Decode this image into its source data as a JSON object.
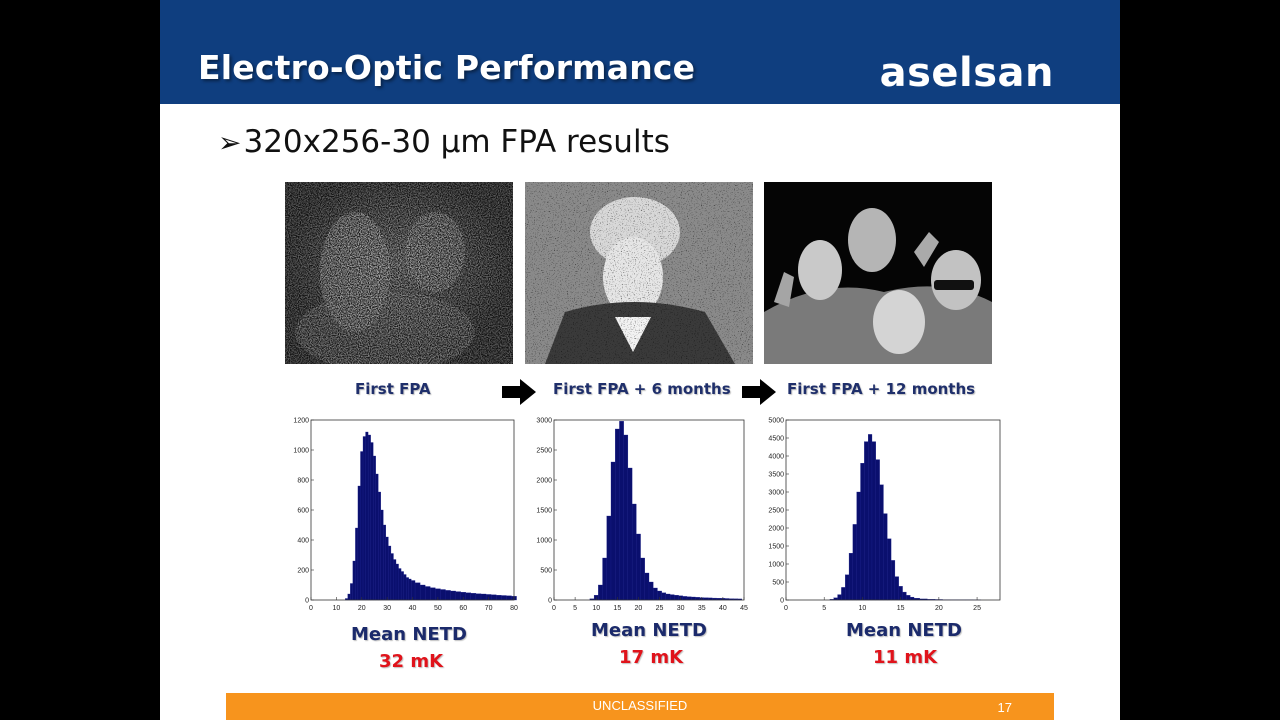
{
  "header": {
    "title": "Electro-Optic Performance",
    "logo_text": "aselsan"
  },
  "bullet": {
    "marker": "➢",
    "text": "320x256-30 µm FPA results"
  },
  "captions": [
    "First FPA",
    "First FPA + 6 months",
    "First FPA + 12 months"
  ],
  "netd": [
    {
      "label": "Mean NETD",
      "value": "32 mK"
    },
    {
      "label": "Mean NETD",
      "value": "17 mK"
    },
    {
      "label": "Mean NETD",
      "value": "11 mK"
    }
  ],
  "footer": {
    "classification": "UNCLASSIFIED",
    "page": "17"
  },
  "colors": {
    "header_bg": "#0f3e7f",
    "footer_bg": "#f7941d",
    "bar_fill": "#0a0f6e",
    "netd_value": "#e0131b"
  },
  "chart_data": [
    {
      "type": "bar",
      "xlim": [
        0,
        80
      ],
      "ylim": [
        0,
        1200
      ],
      "xticks": [
        0,
        10,
        20,
        30,
        40,
        50,
        60,
        70,
        80
      ],
      "yticks": [
        0,
        200,
        400,
        600,
        800,
        1000,
        1200
      ],
      "x": [
        14,
        15,
        16,
        17,
        18,
        19,
        20,
        21,
        22,
        23,
        24,
        25,
        26,
        27,
        28,
        29,
        30,
        31,
        32,
        33,
        34,
        35,
        36,
        37,
        38,
        39,
        40,
        42,
        44,
        46,
        48,
        50,
        52,
        54,
        56,
        58,
        60,
        62,
        64,
        66,
        68,
        70,
        72,
        74,
        76,
        78,
        80
      ],
      "values": [
        10,
        40,
        110,
        260,
        480,
        760,
        990,
        1090,
        1120,
        1100,
        1050,
        960,
        840,
        720,
        600,
        500,
        420,
        360,
        310,
        270,
        240,
        210,
        190,
        170,
        150,
        140,
        130,
        115,
        100,
        90,
        82,
        75,
        70,
        64,
        60,
        56,
        52,
        48,
        45,
        42,
        40,
        37,
        35,
        32,
        30,
        28,
        25
      ]
    },
    {
      "type": "bar",
      "xlim": [
        0,
        45
      ],
      "ylim": [
        0,
        3000
      ],
      "xticks": [
        0,
        5,
        10,
        15,
        20,
        25,
        30,
        35,
        40,
        45
      ],
      "yticks": [
        0,
        500,
        1000,
        1500,
        2000,
        2500,
        3000
      ],
      "x": [
        9,
        10,
        11,
        12,
        13,
        14,
        15,
        16,
        17,
        18,
        19,
        20,
        21,
        22,
        23,
        24,
        25,
        26,
        27,
        28,
        29,
        30,
        31,
        32,
        33,
        34,
        35,
        36,
        37,
        38,
        39,
        40,
        41,
        42,
        43,
        44
      ],
      "values": [
        20,
        80,
        250,
        700,
        1400,
        2300,
        2850,
        2980,
        2750,
        2200,
        1600,
        1100,
        700,
        450,
        300,
        200,
        150,
        120,
        100,
        90,
        80,
        70,
        60,
        55,
        50,
        45,
        40,
        38,
        35,
        32,
        30,
        28,
        25,
        22,
        20,
        18
      ]
    },
    {
      "type": "bar",
      "xlim": [
        0,
        28
      ],
      "ylim": [
        0,
        5000
      ],
      "xticks": [
        0,
        5,
        10,
        15,
        20,
        25
      ],
      "yticks": [
        0,
        500,
        1000,
        1500,
        2000,
        2500,
        3000,
        3500,
        4000,
        4500,
        5000
      ],
      "x": [
        6,
        6.5,
        7,
        7.5,
        8,
        8.5,
        9,
        9.5,
        10,
        10.5,
        11,
        11.5,
        12,
        12.5,
        13,
        13.5,
        14,
        14.5,
        15,
        15.5,
        16,
        16.5,
        17,
        18,
        19,
        20,
        21,
        22,
        23,
        24,
        25
      ],
      "values": [
        20,
        60,
        150,
        350,
        700,
        1300,
        2100,
        3000,
        3800,
        4400,
        4600,
        4400,
        3900,
        3200,
        2400,
        1700,
        1100,
        650,
        380,
        220,
        130,
        80,
        50,
        30,
        20,
        15,
        10,
        8,
        6,
        5,
        4
      ]
    }
  ]
}
